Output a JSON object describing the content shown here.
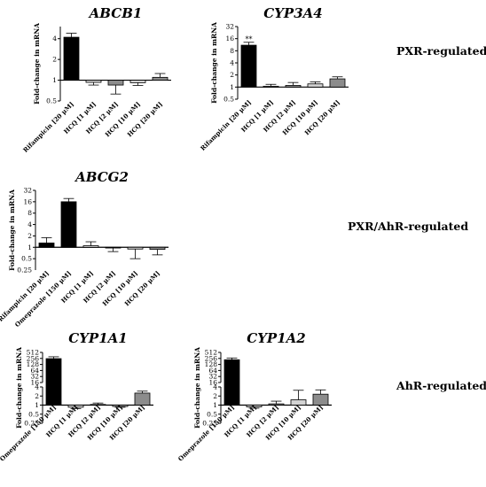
{
  "figure": {
    "group_labels": [
      {
        "id": "pxr",
        "text": "PXR-regulated"
      },
      {
        "id": "pxr-ahr",
        "text": "PXR/AhR-regulated"
      },
      {
        "id": "ahr",
        "text": "AhR-regulated"
      }
    ],
    "colors": {
      "black": "#000000",
      "light_gray": "#d3d3d3",
      "mid_gray": "#8c8c8c",
      "white": "#ffffff"
    }
  },
  "chart_data": [
    {
      "id": "abcb1",
      "type": "bar",
      "title": "ABCB1",
      "ylabel": "Fold-change in mRNA",
      "yscale": "log2",
      "yticks": [
        "0.5",
        "1",
        "2",
        "4"
      ],
      "ytick_values": [
        0.5,
        1,
        2,
        4
      ],
      "ylim": [
        0.5,
        6
      ],
      "categories": [
        "Rifampicin [20 μM]",
        "HCQ [1 μM]",
        "HCQ [2 μM]",
        "HCQ [10 μM]",
        "HCQ [20 μM]"
      ],
      "values": [
        4.2,
        0.93,
        0.85,
        0.92,
        1.1
      ],
      "errors": [
        0.6,
        0.08,
        0.22,
        0.08,
        0.15
      ],
      "fills": [
        "black",
        "light_gray",
        "mid_gray",
        "light_gray",
        "mid_gray"
      ],
      "significance": [
        "",
        "",
        "",
        "",
        ""
      ]
    },
    {
      "id": "cyp3a4",
      "type": "bar",
      "title": "CYP3A4",
      "ylabel": "Fold-change in mRNA",
      "yscale": "log2",
      "yticks": [
        "0.5",
        "1",
        "2",
        "4",
        "8",
        "16",
        "32"
      ],
      "ytick_values": [
        0.5,
        1,
        2,
        4,
        8,
        16,
        32
      ],
      "ylim": [
        0.5,
        32
      ],
      "categories": [
        "Rifampicin [20 μM]",
        "HCQ [1 μM]",
        "HCQ [2 μM]",
        "HCQ [10 μM]",
        "HCQ [20 μM]"
      ],
      "values": [
        11,
        1.05,
        1.1,
        1.2,
        1.6
      ],
      "errors": [
        2.0,
        0.12,
        0.2,
        0.15,
        0.2
      ],
      "fills": [
        "black",
        "light_gray",
        "mid_gray",
        "light_gray",
        "mid_gray"
      ],
      "significance": [
        "**",
        "",
        "",
        "",
        ""
      ]
    },
    {
      "id": "abcg2",
      "type": "bar",
      "title": "ABCG2",
      "ylabel": "Fold-change in mRNA",
      "yscale": "log2",
      "yticks": [
        "0.5",
        "1",
        "2",
        "4",
        "8",
        "16",
        "32"
      ],
      "ytick_values": [
        0.5,
        1,
        2,
        4,
        8,
        16,
        32
      ],
      "ylim": [
        0.25,
        32
      ],
      "ylim_label": "0.25",
      "categories": [
        "Rifampicin [20 μM]",
        "Omeprazole [150 μM]",
        "HCQ [1 μM]",
        "HCQ [2 μM]",
        "HCQ [10 μM]",
        "HCQ [20 μM]"
      ],
      "values": [
        1.3,
        16,
        1.1,
        0.97,
        0.9,
        0.88
      ],
      "errors": [
        0.5,
        3.5,
        0.3,
        0.2,
        0.4,
        0.25
      ],
      "fills": [
        "black",
        "black",
        "light_gray",
        "mid_gray",
        "light_gray",
        "mid_gray"
      ],
      "significance": [
        "",
        "",
        "",
        "",
        "",
        ""
      ]
    },
    {
      "id": "cyp1a1",
      "type": "bar",
      "title": "CYP1A1",
      "ylabel": "Fold-change in mRNA",
      "yscale": "log2 (broken axis)",
      "yticks": [
        "0.25",
        "0.5",
        "1",
        "2",
        "4",
        "16",
        "32",
        "64",
        "128",
        "256",
        "512"
      ],
      "ytick_values": [
        0.25,
        0.5,
        1,
        2,
        4,
        16,
        32,
        64,
        128,
        256,
        512
      ],
      "axis_break": [
        4,
        16
      ],
      "ylim": [
        0.25,
        512
      ],
      "categories": [
        "Omeprazole [150 μM]",
        "HCQ [1 μM]",
        "HCQ [2 μM]",
        "HCQ [10 μM]",
        "HCQ [20 μM]"
      ],
      "values": [
        250,
        0.85,
        1.05,
        0.9,
        2.5
      ],
      "errors": [
        60,
        0.08,
        0.12,
        0.05,
        0.4
      ],
      "fills": [
        "black",
        "light_gray",
        "mid_gray",
        "light_gray",
        "mid_gray"
      ],
      "significance": [
        "",
        "",
        "",
        "",
        ""
      ]
    },
    {
      "id": "cyp1a2",
      "type": "bar",
      "title": "CYP1A2",
      "ylabel": "Fold-change in mRNA",
      "yscale": "log2 (broken axis)",
      "yticks": [
        "0.25",
        "0.5",
        "1",
        "2",
        "4",
        "16",
        "32",
        "64",
        "128",
        "256",
        "512"
      ],
      "ytick_values": [
        0.25,
        0.5,
        1,
        2,
        4,
        16,
        32,
        64,
        128,
        256,
        512
      ],
      "axis_break": [
        4,
        16
      ],
      "ylim": [
        0.25,
        512
      ],
      "categories": [
        "Omeprazole [150 μM]",
        "HCQ [1 μM]",
        "HCQ [2 μM]",
        "HCQ [10 μM]",
        "HCQ [20 μM]"
      ],
      "values": [
        220,
        0.87,
        1.1,
        1.5,
        2.3
      ],
      "errors": [
        50,
        0.08,
        0.25,
        1.6,
        0.9
      ],
      "fills": [
        "black",
        "light_gray",
        "mid_gray",
        "light_gray",
        "mid_gray"
      ],
      "significance": [
        "",
        "",
        "",
        "",
        ""
      ]
    }
  ]
}
